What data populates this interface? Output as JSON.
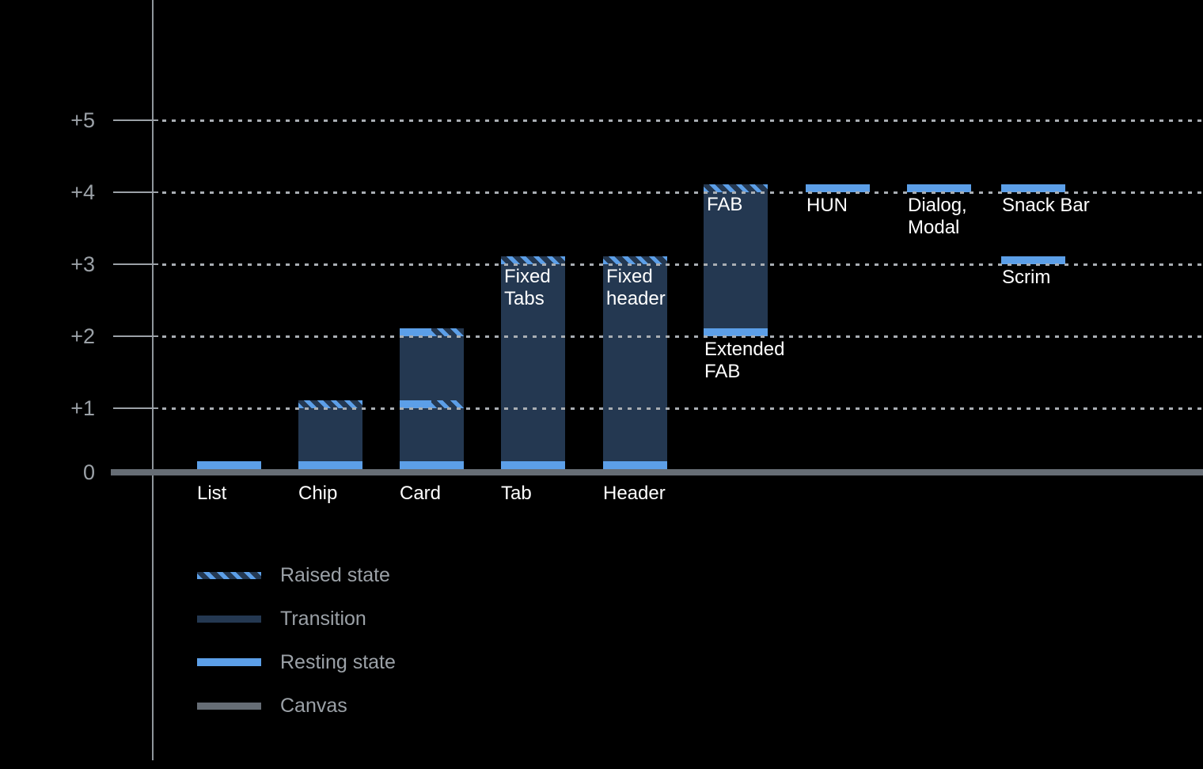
{
  "chart_data": {
    "type": "bar",
    "subtype": "elevation-range-chart",
    "background": "#000000",
    "y_axis": {
      "range": [
        0,
        5
      ],
      "grid": "dotted horizontal lines at +1 through +5, solid canvas bar at 0",
      "ticks": [
        {
          "label": "+5",
          "level": 5
        },
        {
          "label": "+4",
          "level": 4
        },
        {
          "label": "+3",
          "level": 3
        },
        {
          "label": "+2",
          "level": 2
        },
        {
          "label": "+1",
          "level": 1
        },
        {
          "label": "0",
          "level": 0
        }
      ]
    },
    "colors": {
      "resting_state": "#5C9FE8",
      "transition": "#243851",
      "raised_state_stripe": "#5C9FE8",
      "canvas": "#666D75",
      "axis": "#9BA1A7",
      "label_text": "#FFFFFF",
      "muted_text": "#9BA1A7"
    },
    "legend": {
      "position": "bottom-left",
      "items": [
        {
          "key": "raised",
          "label": "Raised state"
        },
        {
          "key": "transition",
          "label": "Transition"
        },
        {
          "key": "resting",
          "label": "Resting state"
        },
        {
          "key": "canvas",
          "label": "Canvas"
        }
      ]
    },
    "bars": [
      {
        "name": "list",
        "col": 0,
        "label_lines": [
          "List"
        ],
        "label_pos": "baseline",
        "resting_levels": [
          0
        ]
      },
      {
        "name": "chip",
        "col": 1,
        "label_lines": [
          "Chip"
        ],
        "label_pos": "baseline",
        "resting_levels": [
          0
        ],
        "transition": [
          0,
          1
        ],
        "raised_levels": [
          1
        ]
      },
      {
        "name": "card",
        "col": 2,
        "label_lines": [
          "Card"
        ],
        "label_pos": "baseline",
        "resting_levels": [
          0
        ],
        "transition": [
          0,
          2
        ],
        "split_levels": [
          1,
          2
        ]
      },
      {
        "name": "tab",
        "col": 3,
        "label_lines": [
          "Tab"
        ],
        "label_pos": "baseline",
        "inner_label_lines": [
          "Fixed",
          "Tabs"
        ],
        "inner_label_level": 3,
        "resting_levels": [
          0
        ],
        "transition": [
          0,
          3
        ],
        "raised_levels": [
          3
        ]
      },
      {
        "name": "header",
        "col": 4,
        "label_lines": [
          "Header"
        ],
        "label_pos": "baseline",
        "inner_label_lines": [
          "Fixed",
          "header"
        ],
        "inner_label_level": 3,
        "resting_levels": [
          0
        ],
        "transition": [
          0,
          3
        ],
        "raised_levels": [
          3
        ]
      },
      {
        "name": "extended-fab",
        "col": 5,
        "label_lines": [
          "Extended",
          "FAB"
        ],
        "label_pos": "under",
        "label_level": 2,
        "inner_label_lines": [
          "FAB"
        ],
        "inner_label_level": 4,
        "resting_levels": [
          2
        ],
        "transition": [
          2,
          4
        ],
        "raised_levels": [
          4
        ]
      },
      {
        "name": "hun",
        "col": 6,
        "label_lines": [
          "HUN"
        ],
        "label_pos": "under",
        "label_level": 4,
        "resting_levels": [
          4
        ]
      },
      {
        "name": "dialog-modal",
        "col": 7,
        "label_lines": [
          "Dialog,",
          "Modal"
        ],
        "label_pos": "under",
        "label_level": 4,
        "resting_levels": [
          4
        ]
      },
      {
        "name": "snack-bar",
        "col": 8,
        "label_lines": [
          "Snack Bar"
        ],
        "label_pos": "under",
        "label_level": 4,
        "resting_levels": [
          4
        ]
      },
      {
        "name": "scrim",
        "col": 8,
        "label_lines": [
          "Scrim"
        ],
        "label_pos": "under",
        "label_level": 3,
        "resting_levels": [
          3
        ]
      }
    ]
  }
}
